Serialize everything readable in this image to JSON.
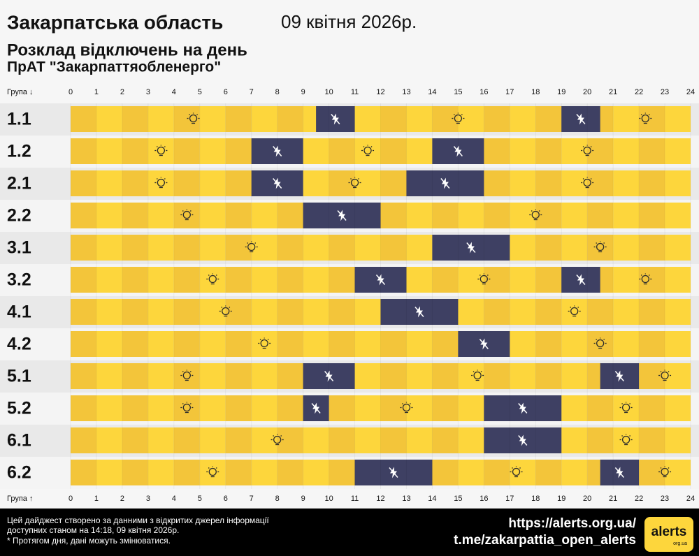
{
  "chart_data": {
    "type": "schedule",
    "title": "Закарпатська область",
    "date": "09 квітня 2026р.",
    "subtitle": "Розклад відключень на день",
    "company": "ПрАТ \"Закарпаттяобленерго\"",
    "group_label_top": "Група ↓",
    "group_label_bottom": "Група ↑",
    "xlim": [
      0,
      24
    ],
    "xticks": [
      0,
      1,
      2,
      3,
      4,
      5,
      6,
      7,
      8,
      9,
      10,
      11,
      12,
      13,
      14,
      15,
      16,
      17,
      18,
      19,
      20,
      21,
      22,
      23,
      24
    ],
    "on_colors": [
      "#f3c53a",
      "#fdd63c"
    ],
    "off_color": "#3e4063",
    "rows": [
      {
        "name": "1.1",
        "outages": [
          {
            "start": 9.5,
            "end": 11
          },
          {
            "start": 19,
            "end": 20.5
          }
        ]
      },
      {
        "name": "1.2",
        "outages": [
          {
            "start": 7,
            "end": 9
          },
          {
            "start": 14,
            "end": 16
          }
        ]
      },
      {
        "name": "2.1",
        "outages": [
          {
            "start": 7,
            "end": 9
          },
          {
            "start": 13,
            "end": 16
          }
        ]
      },
      {
        "name": "2.2",
        "outages": [
          {
            "start": 9,
            "end": 12
          }
        ]
      },
      {
        "name": "3.1",
        "outages": [
          {
            "start": 14,
            "end": 17
          }
        ]
      },
      {
        "name": "3.2",
        "outages": [
          {
            "start": 11,
            "end": 13
          },
          {
            "start": 19,
            "end": 20.5
          }
        ]
      },
      {
        "name": "4.1",
        "outages": [
          {
            "start": 12,
            "end": 15
          }
        ]
      },
      {
        "name": "4.2",
        "outages": [
          {
            "start": 15,
            "end": 17
          }
        ]
      },
      {
        "name": "5.1",
        "outages": [
          {
            "start": 9,
            "end": 11
          },
          {
            "start": 20.5,
            "end": 22
          }
        ]
      },
      {
        "name": "5.2",
        "outages": [
          {
            "start": 9,
            "end": 10
          },
          {
            "start": 16,
            "end": 19
          }
        ]
      },
      {
        "name": "6.1",
        "outages": [
          {
            "start": 16,
            "end": 19
          }
        ]
      },
      {
        "name": "6.2",
        "outages": [
          {
            "start": 11,
            "end": 14
          },
          {
            "start": 20.5,
            "end": 22
          }
        ]
      }
    ],
    "footer": [
      "Цей дайджест створено за данними з відкритих джерел інформації",
      "доступних станом на 14:18, 09 квітня 2026р.",
      "* Протягом дня, дані можуть змінюватися."
    ],
    "links": [
      "https://alerts.org.ua/",
      "t.me/zakarpattia_open_alerts"
    ],
    "logo": "alerts",
    "logo_domain": "org.ua"
  }
}
